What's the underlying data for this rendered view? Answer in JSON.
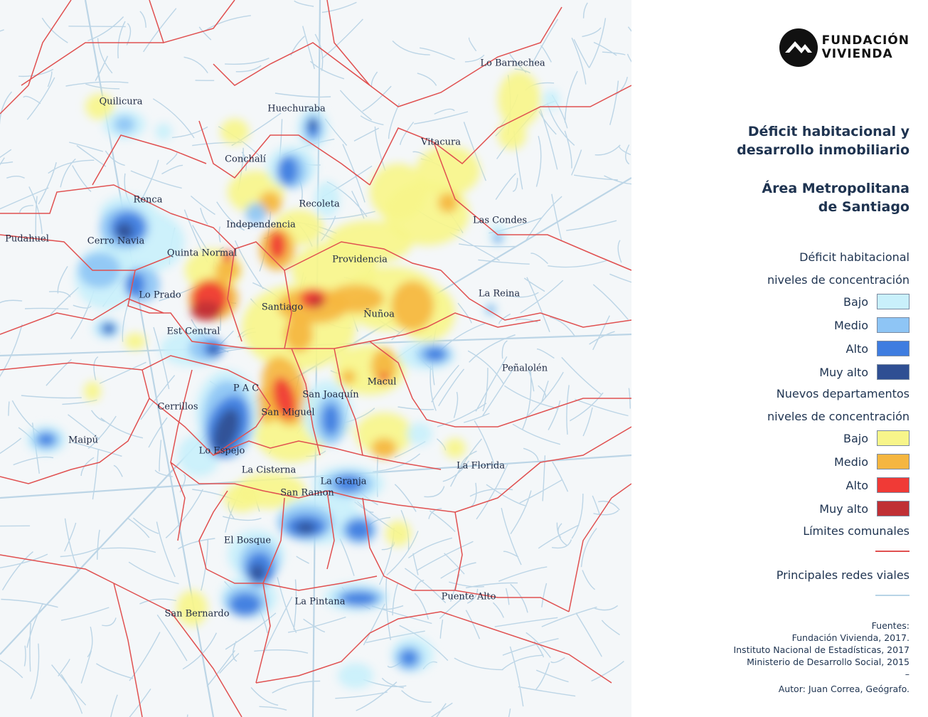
{
  "map": {
    "labels": [
      {
        "id": "quilicura",
        "text": "Quilicura"
      },
      {
        "id": "huechuraba",
        "text": "Huechuraba"
      },
      {
        "id": "lo-barnechea",
        "text": "Lo Barnechea"
      },
      {
        "id": "vitacura",
        "text": "Vitacura"
      },
      {
        "id": "conchali",
        "text": "Conchalí"
      },
      {
        "id": "renca",
        "text": "Renca"
      },
      {
        "id": "recoleta",
        "text": "Recoleta"
      },
      {
        "id": "las-condes",
        "text": "Las Condes"
      },
      {
        "id": "independencia",
        "text": "Independencia"
      },
      {
        "id": "pudahuel",
        "text": "Pudahuel"
      },
      {
        "id": "cerro-navia",
        "text": "Cerro Navia"
      },
      {
        "id": "quinta-normal",
        "text": "Quinta Normal"
      },
      {
        "id": "providencia",
        "text": "Providencia"
      },
      {
        "id": "lo-prado",
        "text": "Lo Prado"
      },
      {
        "id": "la-reina",
        "text": "La Reina"
      },
      {
        "id": "santiago",
        "text": "Santiago"
      },
      {
        "id": "nunoa",
        "text": "Ñuñoa"
      },
      {
        "id": "est-central",
        "text": "Est Central"
      },
      {
        "id": "penalolen",
        "text": "Peñalolén"
      },
      {
        "id": "macul",
        "text": "Macul"
      },
      {
        "id": "pac",
        "text": "P A C"
      },
      {
        "id": "san-joaquin",
        "text": "San Joaquín"
      },
      {
        "id": "cerrillos",
        "text": "Cerrillos"
      },
      {
        "id": "san-miguel",
        "text": "San Miguel"
      },
      {
        "id": "maipu",
        "text": "Maipú"
      },
      {
        "id": "lo-espejo",
        "text": "Lo Espejo"
      },
      {
        "id": "la-florida",
        "text": "La Florida"
      },
      {
        "id": "la-cisterna",
        "text": "La Cisterna"
      },
      {
        "id": "la-granja",
        "text": "La Granja"
      },
      {
        "id": "san-ramon",
        "text": "San Ramon"
      },
      {
        "id": "el-bosque",
        "text": "El Bosque"
      },
      {
        "id": "puente-alto",
        "text": "Puente Alto"
      },
      {
        "id": "la-pintana",
        "text": "La Pintana"
      },
      {
        "id": "san-bernardo",
        "text": "San Bernardo"
      }
    ]
  },
  "logo": {
    "line1": "FUNDACIÓN",
    "line2": "VIVIENDA"
  },
  "title": {
    "line1": "Déficit habitacional y",
    "line2": "desarrollo inmobiliario",
    "line3": "Área Metropolitana",
    "line4": "de Santiago"
  },
  "legend": {
    "deficit_head1": "Déficit habitacional",
    "deficit_head2": "niveles de concentración",
    "deficit_levels": [
      {
        "label": "Bajo",
        "color": "#c9f0fb"
      },
      {
        "label": "Medio",
        "color": "#8ec5f5"
      },
      {
        "label": "Alto",
        "color": "#3f7de0"
      },
      {
        "label": "Muy alto",
        "color": "#2f4f93"
      }
    ],
    "dept_head1": "Nuevos departamentos",
    "dept_head2": "niveles de concentración",
    "dept_levels": [
      {
        "label": "Bajo",
        "color": "#f7f58a"
      },
      {
        "label": "Medio",
        "color": "#f5b640"
      },
      {
        "label": "Alto",
        "color": "#f03a36"
      },
      {
        "label": "Muy alto",
        "color": "#c03035"
      }
    ],
    "limits_label": "Límites comunales",
    "limits_color": "#e05050",
    "roads_label": "Principales redes viales",
    "roads_color": "#b8d4e6"
  },
  "sources": {
    "head": "Fuentes:",
    "line1": "Fundación Vivienda, 2017.",
    "line2": "Instituto Nacional de Estadísticas, 2017",
    "line3": "Ministerio de Desarrollo Social, 2015",
    "dash": "–",
    "author": "Autor: Juan Correa, Geógrafo."
  }
}
